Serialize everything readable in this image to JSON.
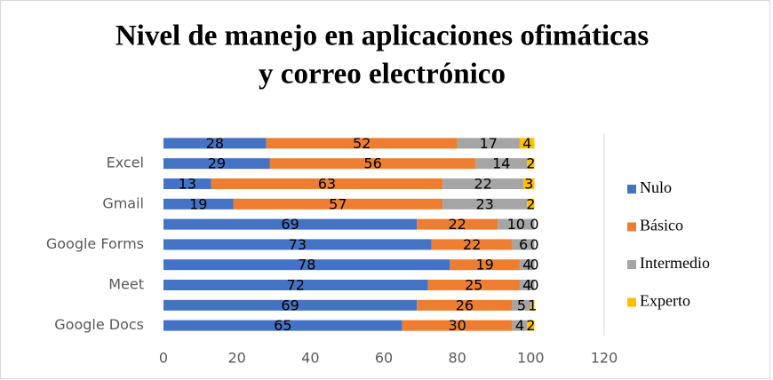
{
  "chart_data": {
    "type": "stacked-bar-horizontal",
    "title": [
      "Nivel de manejo en aplicaciones ofimáticas",
      "y correo electrónico"
    ],
    "categories": [
      null,
      "Excel",
      null,
      "Gmail",
      null,
      "Google Forms",
      null,
      "Meet",
      null,
      "Google Docs"
    ],
    "series": [
      {
        "name": "Nulo",
        "color": "#4472c4",
        "values": [
          28,
          29,
          13,
          19,
          69,
          73,
          78,
          72,
          69,
          65
        ]
      },
      {
        "name": "Básico",
        "color": "#ed7d31",
        "values": [
          52,
          56,
          63,
          57,
          22,
          22,
          19,
          25,
          26,
          30
        ]
      },
      {
        "name": "Intermedio",
        "color": "#a5a5a5",
        "values": [
          17,
          14,
          22,
          23,
          10,
          6,
          4,
          4,
          5,
          4
        ]
      },
      {
        "name": "Experto",
        "color": "#ffc000",
        "values": [
          4,
          2,
          3,
          2,
          0,
          0,
          0,
          0,
          1,
          2
        ]
      }
    ],
    "xlim": [
      0,
      120
    ],
    "xticks": [
      0,
      20,
      40,
      60,
      80,
      100,
      120
    ],
    "grid": false,
    "legend": "right"
  }
}
